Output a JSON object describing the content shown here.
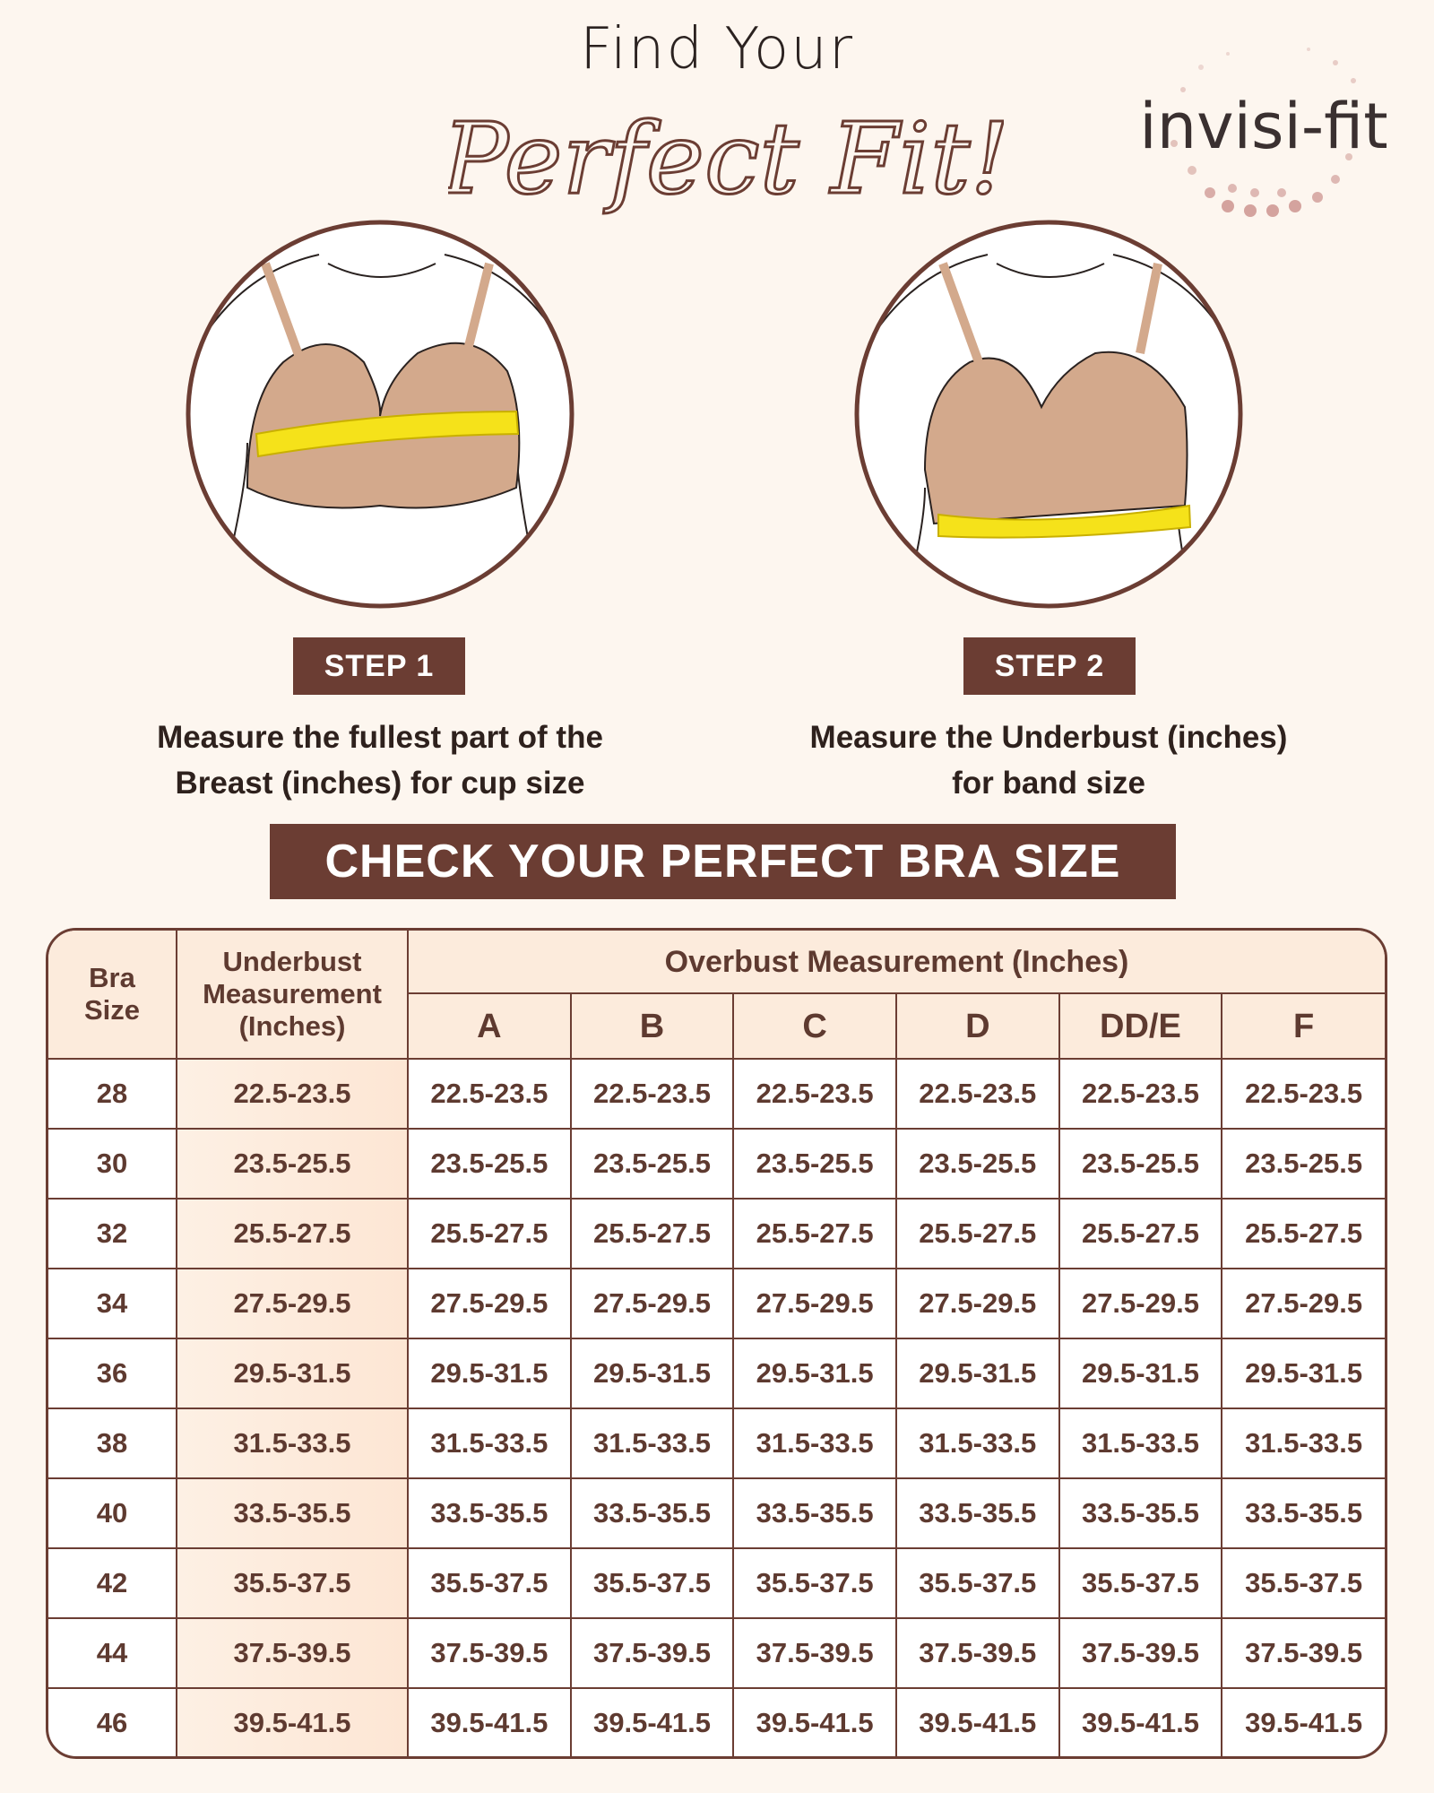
{
  "header": {
    "line1": "Find Your",
    "script": "Perfect Fit!"
  },
  "logo": {
    "text": "invisi-fit"
  },
  "steps": [
    {
      "badge": "STEP 1",
      "line1": "Measure the fullest part of the",
      "line2": "Breast (inches) for cup size"
    },
    {
      "badge": "STEP 2",
      "line1": "Measure the Underbust (inches)",
      "line2": "for band size"
    }
  ],
  "banner": "CHECK YOUR PERFECT BRA SIZE",
  "table": {
    "headers": {
      "bra_size": "Bra Size",
      "underbust": "Underbust Measurement (Inches)",
      "overbust": "Overbust Measurement (Inches)",
      "cups": [
        "A",
        "B",
        "C",
        "D",
        "DD/E",
        "F"
      ]
    },
    "rows": [
      {
        "size": "28",
        "underbust": "22.5-23.5",
        "cups": [
          "22.5-23.5",
          "22.5-23.5",
          "22.5-23.5",
          "22.5-23.5",
          "22.5-23.5",
          "22.5-23.5"
        ]
      },
      {
        "size": "30",
        "underbust": "23.5-25.5",
        "cups": [
          "23.5-25.5",
          "23.5-25.5",
          "23.5-25.5",
          "23.5-25.5",
          "23.5-25.5",
          "23.5-25.5"
        ]
      },
      {
        "size": "32",
        "underbust": "25.5-27.5",
        "cups": [
          "25.5-27.5",
          "25.5-27.5",
          "25.5-27.5",
          "25.5-27.5",
          "25.5-27.5",
          "25.5-27.5"
        ]
      },
      {
        "size": "34",
        "underbust": "27.5-29.5",
        "cups": [
          "27.5-29.5",
          "27.5-29.5",
          "27.5-29.5",
          "27.5-29.5",
          "27.5-29.5",
          "27.5-29.5"
        ]
      },
      {
        "size": "36",
        "underbust": "29.5-31.5",
        "cups": [
          "29.5-31.5",
          "29.5-31.5",
          "29.5-31.5",
          "29.5-31.5",
          "29.5-31.5",
          "29.5-31.5"
        ]
      },
      {
        "size": "38",
        "underbust": "31.5-33.5",
        "cups": [
          "31.5-33.5",
          "31.5-33.5",
          "31.5-33.5",
          "31.5-33.5",
          "31.5-33.5",
          "31.5-33.5"
        ]
      },
      {
        "size": "40",
        "underbust": "33.5-35.5",
        "cups": [
          "33.5-35.5",
          "33.5-35.5",
          "33.5-35.5",
          "33.5-35.5",
          "33.5-35.5",
          "33.5-35.5"
        ]
      },
      {
        "size": "42",
        "underbust": "35.5-37.5",
        "cups": [
          "35.5-37.5",
          "35.5-37.5",
          "35.5-37.5",
          "35.5-37.5",
          "35.5-37.5",
          "35.5-37.5"
        ]
      },
      {
        "size": "44",
        "underbust": "37.5-39.5",
        "cups": [
          "37.5-39.5",
          "37.5-39.5",
          "37.5-39.5",
          "37.5-39.5",
          "37.5-39.5",
          "37.5-39.5"
        ]
      },
      {
        "size": "46",
        "underbust": "39.5-41.5",
        "cups": [
          "39.5-41.5",
          "39.5-41.5",
          "39.5-41.5",
          "39.5-41.5",
          "39.5-41.5",
          "39.5-41.5"
        ]
      }
    ]
  },
  "colors": {
    "brand_brown": "#6b3d33",
    "background": "#fdf6ef",
    "header_fill": "#fcebdc",
    "tape_yellow": "#f5e21a",
    "bra_nude": "#d3a98c"
  }
}
